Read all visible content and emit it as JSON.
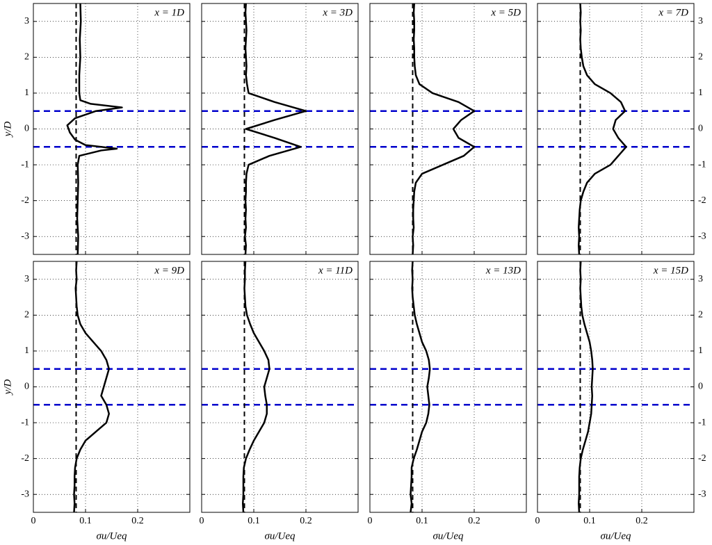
{
  "chart_data": [
    {
      "type": "line",
      "title": "x = 1D",
      "ylabel": "y/D",
      "y": [
        -3.5,
        -3,
        -2.5,
        -2,
        -1.5,
        -1,
        -0.75,
        -0.6,
        -0.55,
        -0.45,
        -0.3,
        -0.1,
        0.1,
        0.3,
        0.5,
        0.6,
        0.7,
        0.8,
        1,
        1.5,
        2,
        2.5,
        3,
        3.5
      ],
      "series": [
        {
          "color": "#000000",
          "values": [
            0.085,
            0.086,
            0.084,
            0.085,
            0.086,
            0.085,
            0.088,
            0.13,
            0.16,
            0.1,
            0.08,
            0.07,
            0.065,
            0.08,
            0.12,
            0.17,
            0.11,
            0.09,
            0.088,
            0.088,
            0.09,
            0.089,
            0.091,
            0.09
          ]
        }
      ],
      "xlim": [
        0,
        0.3
      ],
      "ylim": [
        -3.5,
        3.5
      ],
      "xticks": [
        0,
        0.1,
        0.2
      ],
      "yticks": [
        -3,
        -2,
        -1,
        0,
        1,
        2,
        3
      ],
      "grid": true,
      "vlines": [
        {
          "value": 0.082,
          "color": "#000000"
        }
      ],
      "hlines": [
        {
          "value": 0.5,
          "color": "#0000cc"
        },
        {
          "value": -0.5,
          "color": "#0000cc"
        }
      ]
    },
    {
      "type": "line",
      "title": "x = 3D",
      "y": [
        -3.5,
        -3.25,
        -3,
        -2.75,
        -2.5,
        -2.25,
        -2,
        -1.75,
        -1.5,
        -1.25,
        -1,
        -0.75,
        -0.5,
        -0.25,
        0,
        0.25,
        0.5,
        0.75,
        1,
        1.25,
        1.5,
        1.75,
        2,
        2.25,
        2.5,
        2.75,
        3,
        3.25,
        3.5
      ],
      "series": [
        {
          "color": "#000000",
          "values": [
            0.084,
            0.085,
            0.083,
            0.085,
            0.084,
            0.085,
            0.084,
            0.085,
            0.085,
            0.086,
            0.09,
            0.13,
            0.19,
            0.14,
            0.085,
            0.14,
            0.2,
            0.14,
            0.09,
            0.087,
            0.085,
            0.086,
            0.085,
            0.084,
            0.085,
            0.086,
            0.085,
            0.084,
            0.085
          ]
        }
      ],
      "xlim": [
        0,
        0.3
      ],
      "ylim": [
        -3.5,
        3.5
      ],
      "xticks": [
        0,
        0.1,
        0.2
      ],
      "yticks": [
        -3,
        -2,
        -1,
        0,
        1,
        2,
        3
      ],
      "grid": true,
      "vlines": [
        {
          "value": 0.082,
          "color": "#000000"
        }
      ],
      "hlines": [
        {
          "value": 0.5,
          "color": "#0000cc"
        },
        {
          "value": -0.5,
          "color": "#0000cc"
        }
      ]
    },
    {
      "type": "line",
      "title": "x = 5D",
      "y": [
        -3.5,
        -3.25,
        -3,
        -2.75,
        -2.5,
        -2.25,
        -2,
        -1.75,
        -1.5,
        -1.25,
        -1,
        -0.75,
        -0.5,
        -0.25,
        0,
        0.25,
        0.5,
        0.75,
        1,
        1.25,
        1.5,
        1.75,
        2,
        2.25,
        2.5,
        2.75,
        3,
        3.25,
        3.5
      ],
      "series": [
        {
          "color": "#000000",
          "values": [
            0.082,
            0.083,
            0.082,
            0.084,
            0.083,
            0.083,
            0.084,
            0.085,
            0.088,
            0.1,
            0.14,
            0.18,
            0.2,
            0.17,
            0.16,
            0.175,
            0.2,
            0.17,
            0.12,
            0.095,
            0.088,
            0.086,
            0.085,
            0.085,
            0.084,
            0.085,
            0.085,
            0.084,
            0.085
          ]
        }
      ],
      "xlim": [
        0,
        0.3
      ],
      "ylim": [
        -3.5,
        3.5
      ],
      "xticks": [
        0,
        0.1,
        0.2
      ],
      "yticks": [
        -3,
        -2,
        -1,
        0,
        1,
        2,
        3
      ],
      "grid": true,
      "vlines": [
        {
          "value": 0.082,
          "color": "#000000"
        }
      ],
      "hlines": [
        {
          "value": 0.5,
          "color": "#0000cc"
        },
        {
          "value": -0.5,
          "color": "#0000cc"
        }
      ]
    },
    {
      "type": "line",
      "title": "x = 7D",
      "y": [
        -3.5,
        -3.25,
        -3,
        -2.75,
        -2.5,
        -2.25,
        -2,
        -1.75,
        -1.5,
        -1.25,
        -1,
        -0.75,
        -0.5,
        -0.25,
        0,
        0.25,
        0.5,
        0.75,
        1,
        1.25,
        1.5,
        1.75,
        2,
        2.25,
        2.5,
        2.75,
        3,
        3.25,
        3.5
      ],
      "series": [
        {
          "color": "#000000",
          "values": [
            0.08,
            0.079,
            0.08,
            0.079,
            0.08,
            0.081,
            0.083,
            0.088,
            0.095,
            0.11,
            0.14,
            0.155,
            0.17,
            0.155,
            0.145,
            0.15,
            0.168,
            0.16,
            0.14,
            0.11,
            0.095,
            0.088,
            0.085,
            0.083,
            0.082,
            0.083,
            0.082,
            0.083,
            0.082
          ]
        }
      ],
      "xlim": [
        0,
        0.3
      ],
      "ylim": [
        -3.5,
        3.5
      ],
      "xticks": [
        0,
        0.1,
        0.2
      ],
      "yticks": [
        -3,
        -2,
        -1,
        0,
        1,
        2,
        3
      ],
      "grid": true,
      "vlines": [
        {
          "value": 0.082,
          "color": "#000000"
        }
      ],
      "hlines": [
        {
          "value": 0.5,
          "color": "#0000cc"
        },
        {
          "value": -0.5,
          "color": "#0000cc"
        }
      ]
    },
    {
      "type": "line",
      "title": "x = 9D",
      "ylabel": "y/D",
      "xlabel": "σu/Ueq",
      "y": [
        -3.5,
        -3.25,
        -3,
        -2.75,
        -2.5,
        -2.25,
        -2,
        -1.75,
        -1.5,
        -1.25,
        -1,
        -0.75,
        -0.5,
        -0.25,
        0,
        0.25,
        0.5,
        0.75,
        1,
        1.25,
        1.5,
        1.75,
        2,
        2.25,
        2.5,
        2.75,
        3,
        3.25,
        3.5
      ],
      "series": [
        {
          "color": "#000000",
          "values": [
            0.078,
            0.079,
            0.078,
            0.079,
            0.079,
            0.08,
            0.083,
            0.09,
            0.1,
            0.12,
            0.14,
            0.145,
            0.14,
            0.13,
            0.135,
            0.14,
            0.145,
            0.14,
            0.13,
            0.115,
            0.1,
            0.09,
            0.085,
            0.083,
            0.082,
            0.081,
            0.083,
            0.082,
            0.083
          ]
        }
      ],
      "xlim": [
        0,
        0.3
      ],
      "ylim": [
        -3.5,
        3.5
      ],
      "xticks": [
        0,
        0.1,
        0.2
      ],
      "yticks": [
        -3,
        -2,
        -1,
        0,
        1,
        2,
        3
      ],
      "grid": true,
      "vlines": [
        {
          "value": 0.082,
          "color": "#000000"
        }
      ],
      "hlines": [
        {
          "value": 0.5,
          "color": "#0000cc"
        },
        {
          "value": -0.5,
          "color": "#0000cc"
        }
      ]
    },
    {
      "type": "line",
      "title": "x = 11D",
      "xlabel": "σu/Ueq",
      "y": [
        -3.5,
        -3.25,
        -3,
        -2.75,
        -2.5,
        -2.25,
        -2,
        -1.75,
        -1.5,
        -1.25,
        -1,
        -0.75,
        -0.5,
        -0.25,
        0,
        0.25,
        0.5,
        0.75,
        1,
        1.25,
        1.5,
        1.75,
        2,
        2.25,
        2.5,
        2.75,
        3,
        3.25,
        3.5
      ],
      "series": [
        {
          "color": "#000000",
          "values": [
            0.08,
            0.079,
            0.08,
            0.08,
            0.08,
            0.081,
            0.085,
            0.092,
            0.1,
            0.11,
            0.12,
            0.125,
            0.125,
            0.122,
            0.12,
            0.125,
            0.13,
            0.128,
            0.12,
            0.11,
            0.1,
            0.093,
            0.087,
            0.084,
            0.083,
            0.082,
            0.083,
            0.083,
            0.084
          ]
        }
      ],
      "xlim": [
        0,
        0.3
      ],
      "ylim": [
        -3.5,
        3.5
      ],
      "xticks": [
        0,
        0.1,
        0.2
      ],
      "yticks": [
        -3,
        -2,
        -1,
        0,
        1,
        2,
        3
      ],
      "grid": true,
      "vlines": [
        {
          "value": 0.082,
          "color": "#000000"
        }
      ],
      "hlines": [
        {
          "value": 0.5,
          "color": "#0000cc"
        },
        {
          "value": -0.5,
          "color": "#0000cc"
        }
      ]
    },
    {
      "type": "line",
      "title": "x = 13D",
      "xlabel": "σu/Ueq",
      "y": [
        -3.5,
        -3.25,
        -3,
        -2.75,
        -2.5,
        -2.25,
        -2,
        -1.75,
        -1.5,
        -1.25,
        -1,
        -0.75,
        -0.5,
        -0.25,
        0,
        0.25,
        0.5,
        0.75,
        1,
        1.25,
        1.5,
        1.75,
        2,
        2.25,
        2.5,
        2.75,
        3,
        3.25,
        3.5
      ],
      "series": [
        {
          "color": "#000000",
          "values": [
            0.078,
            0.08,
            0.078,
            0.079,
            0.08,
            0.08,
            0.084,
            0.09,
            0.095,
            0.1,
            0.108,
            0.112,
            0.114,
            0.112,
            0.11,
            0.113,
            0.115,
            0.113,
            0.108,
            0.1,
            0.095,
            0.09,
            0.086,
            0.084,
            0.082,
            0.081,
            0.082,
            0.081,
            0.082
          ]
        }
      ],
      "xlim": [
        0,
        0.3
      ],
      "ylim": [
        -3.5,
        3.5
      ],
      "xticks": [
        0,
        0.1,
        0.2
      ],
      "yticks": [
        -3,
        -2,
        -1,
        0,
        1,
        2,
        3
      ],
      "grid": true,
      "vlines": [
        {
          "value": 0.082,
          "color": "#000000"
        }
      ],
      "hlines": [
        {
          "value": 0.5,
          "color": "#0000cc"
        },
        {
          "value": -0.5,
          "color": "#0000cc"
        }
      ]
    },
    {
      "type": "line",
      "title": "x = 15D",
      "xlabel": "σu/Ueq",
      "y": [
        -3.5,
        -3.25,
        -3,
        -2.75,
        -2.5,
        -2.25,
        -2,
        -1.75,
        -1.5,
        -1.25,
        -1,
        -0.75,
        -0.5,
        -0.25,
        0,
        0.25,
        0.5,
        0.75,
        1,
        1.25,
        1.5,
        1.75,
        2,
        2.25,
        2.5,
        2.75,
        3,
        3.25,
        3.5
      ],
      "series": [
        {
          "color": "#000000",
          "values": [
            0.08,
            0.079,
            0.08,
            0.08,
            0.08,
            0.081,
            0.083,
            0.087,
            0.092,
            0.097,
            0.1,
            0.103,
            0.104,
            0.105,
            0.104,
            0.105,
            0.106,
            0.105,
            0.103,
            0.1,
            0.095,
            0.09,
            0.086,
            0.084,
            0.083,
            0.082,
            0.083,
            0.082,
            0.083
          ]
        }
      ],
      "xlim": [
        0,
        0.3
      ],
      "ylim": [
        -3.5,
        3.5
      ],
      "xticks": [
        0,
        0.1,
        0.2
      ],
      "yticks": [
        -3,
        -2,
        -1,
        0,
        1,
        2,
        3
      ],
      "grid": true,
      "vlines": [
        {
          "value": 0.082,
          "color": "#000000"
        }
      ],
      "hlines": [
        {
          "value": 0.5,
          "color": "#0000cc"
        },
        {
          "value": -0.5,
          "color": "#0000cc"
        }
      ]
    }
  ]
}
